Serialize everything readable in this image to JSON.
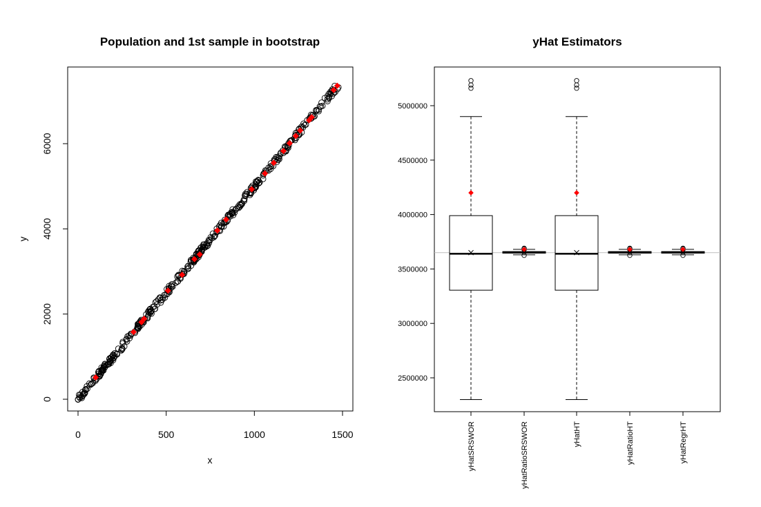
{
  "chart_data": [
    {
      "type": "scatter",
      "title": "Population and 1st sample in bootstrap",
      "xlabel": "x",
      "ylabel": "y",
      "xlim": [
        0,
        1500
      ],
      "ylim": [
        0,
        7500
      ],
      "x_ticks": [
        "0",
        "500",
        "1000",
        "1500"
      ],
      "y_ticks": [
        "0",
        "2000",
        "4000",
        "6000"
      ],
      "x_tick_values": [
        0,
        500,
        1000,
        1500
      ],
      "y_tick_values": [
        0,
        2000,
        4000,
        6000
      ],
      "series": [
        {
          "marker": "open-circle",
          "color": "#000000",
          "relation": "y ≈ 5·x (population, dense cloud along line)",
          "x_range": [
            0,
            1490
          ],
          "slope": 5.0
        },
        {
          "marker": "filled-diamond",
          "color": "#ff0000",
          "x": [
            100,
            315,
            360,
            375,
            510,
            590,
            660,
            690,
            790,
            840,
            985,
            1060,
            1110,
            1165,
            1200,
            1235,
            1260,
            1310,
            1325,
            1450,
            1470
          ],
          "y": [
            510,
            1580,
            1810,
            1890,
            2550,
            2920,
            3290,
            3400,
            3960,
            4220,
            4930,
            5300,
            5550,
            5830,
            6010,
            6180,
            6310,
            6550,
            6620,
            7260,
            7360
          ]
        }
      ]
    },
    {
      "type": "boxplot",
      "title": "yHat Estimators",
      "categories": [
        "yHatSRSWOR",
        "yHatRatioSRSWOR",
        "yHatHT",
        "yHatRatioHT",
        "yHatRegrHT"
      ],
      "ylim": [
        2250000,
        5300000
      ],
      "y_ticks": [
        "2500000",
        "3000000",
        "3500000",
        "4000000",
        "4500000",
        "5000000"
      ],
      "y_tick_values": [
        2500000,
        3000000,
        3500000,
        4000000,
        4500000,
        5000000
      ],
      "reference_line": 3650000,
      "boxes": [
        {
          "whisker_low": 2300000,
          "q1": 3305000,
          "median": 3640000,
          "q3": 3990000,
          "whisker_high": 4900000,
          "mean": 3650000,
          "outliers": [
            5160000,
            5190000,
            5230000
          ],
          "red_point": 4200000
        },
        {
          "whisker_low": 3630000,
          "q1": 3645000,
          "median": 3652000,
          "q3": 3660000,
          "whisker_high": 3680000,
          "mean": 3652000,
          "outliers": [
            3625000,
            3685000,
            3690000
          ],
          "red_point": 3680000
        },
        {
          "whisker_low": 2300000,
          "q1": 3305000,
          "median": 3640000,
          "q3": 3990000,
          "whisker_high": 4900000,
          "mean": 3650000,
          "outliers": [
            5160000,
            5190000,
            5230000
          ],
          "red_point": 4200000
        },
        {
          "whisker_low": 3630000,
          "q1": 3645000,
          "median": 3652000,
          "q3": 3660000,
          "whisker_high": 3680000,
          "mean": 3652000,
          "outliers": [
            3625000,
            3685000,
            3690000
          ],
          "red_point": 3680000
        },
        {
          "whisker_low": 3630000,
          "q1": 3645000,
          "median": 3652000,
          "q3": 3660000,
          "whisker_high": 3680000,
          "mean": 3652000,
          "outliers": [
            3625000,
            3685000,
            3690000
          ],
          "red_point": 3680000
        }
      ]
    }
  ]
}
